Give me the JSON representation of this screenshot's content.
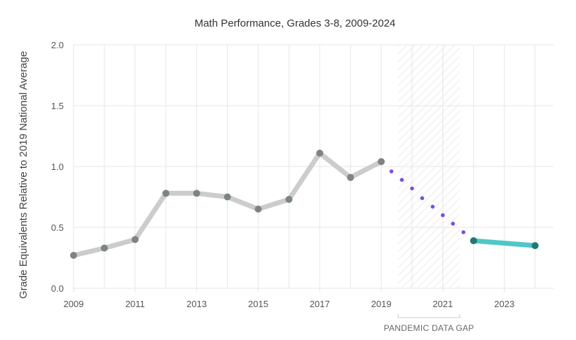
{
  "chart_data": {
    "type": "line",
    "title": "Math Performance, Grades 3-8, 2009-2024",
    "xlabel": "",
    "ylabel": "Grade Equivalents Relative to 2019 National Average",
    "xlim": [
      2009,
      2024.6
    ],
    "ylim": [
      0,
      2.0
    ],
    "y_ticks": [
      "0.0",
      "0.5",
      "1.0",
      "1.5",
      "2.0"
    ],
    "x_ticks": [
      2009,
      2011,
      2013,
      2015,
      2017,
      2019,
      2021,
      2023
    ],
    "grid": true,
    "series": [
      {
        "style": "solid-gray",
        "color": "#cccccc",
        "marker_color": "#7d8488",
        "x": [
          2009,
          2010,
          2011,
          2012,
          2013,
          2014,
          2015,
          2016,
          2017,
          2018,
          2019
        ],
        "values": [
          0.27,
          0.33,
          0.4,
          0.78,
          0.78,
          0.75,
          0.65,
          0.73,
          1.11,
          0.91,
          1.04
        ]
      },
      {
        "style": "dotted-purple",
        "color": "#7b4fe0",
        "x": [
          2019.33,
          2019.67,
          2020.0,
          2020.33,
          2020.67,
          2021.0,
          2021.33,
          2021.67
        ],
        "values": [
          0.96,
          0.89,
          0.82,
          0.74,
          0.67,
          0.6,
          0.53,
          0.46
        ]
      },
      {
        "style": "solid-teal",
        "color": "#4fc7c7",
        "marker_color": "#1f7a70",
        "x": [
          2022,
          2024
        ],
        "values": [
          0.39,
          0.35
        ]
      }
    ],
    "shaded_region": {
      "x_start": 2019.55,
      "x_end": 2021.55,
      "label": "PANDEMIC DATA GAP"
    }
  },
  "colors": {
    "grid": "#e6e6e6",
    "hatch": "#e3e3e3",
    "axis_text": "#555555"
  }
}
